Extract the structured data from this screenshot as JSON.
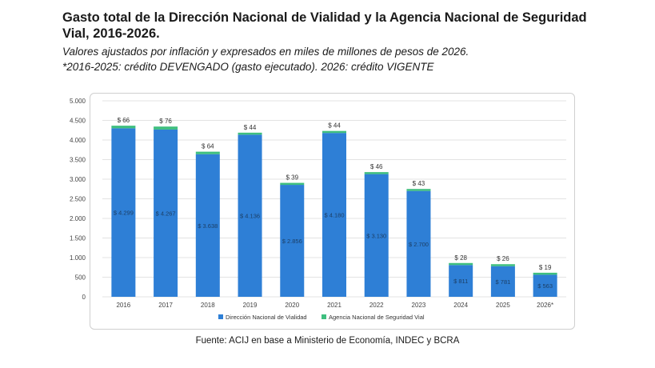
{
  "header": {
    "title_line1": "Gasto total de la Dirección Nacional de Vialidad y la Agencia Nacional de Seguridad",
    "title_line2": "Vial, 2016-2026.",
    "subtitle_line1": "Valores ajustados por inflación y expresados en miles de millones de pesos de 2026.",
    "subtitle_line2": "*2016-2025: crédito DEVENGADO (gasto ejecutado). 2026: crédito VIGENTE"
  },
  "source": "Fuente: ACIJ en base a Ministerio de Economía, INDEC y BCRA",
  "colors": {
    "dnv": "#2e7fd6",
    "ansv": "#3fbf7f",
    "grid": "#e3e3e3",
    "axis_text": "#444444"
  },
  "chart_data": {
    "type": "bar",
    "stacked": true,
    "title": "",
    "xlabel": "",
    "ylabel": "",
    "ylim": [
      0,
      5000
    ],
    "yticks": [
      0,
      500,
      1000,
      1500,
      2000,
      2500,
      3000,
      3500,
      4000,
      4500,
      5000
    ],
    "ytick_labels": [
      "0",
      "500",
      "1.000",
      "1.500",
      "2.000",
      "2.500",
      "3.000",
      "3.500",
      "4.000",
      "4.500",
      "5.000"
    ],
    "categories": [
      "2016",
      "2017",
      "2018",
      "2019",
      "2020",
      "2021",
      "2022",
      "2023",
      "2024",
      "2025",
      "2026*"
    ],
    "grid": true,
    "legend_position": "bottom",
    "series": [
      {
        "name": "Dirección Nacional de Vialidad",
        "values": [
          4299,
          4267,
          3638,
          4136,
          2856,
          4180,
          3130,
          2700,
          811,
          781,
          563
        ],
        "labels": [
          "$ 4.299",
          "$ 4.267",
          "$ 3.638",
          "$ 4.136",
          "$ 2.856",
          "$ 4.180",
          "$ 3.130",
          "$ 2.700",
          "$ 811",
          "$ 781",
          "$ 563"
        ]
      },
      {
        "name": "Agencia Nacional de Seguridad Vial",
        "values": [
          66,
          76,
          64,
          44,
          39,
          44,
          46,
          43,
          28,
          26,
          19
        ],
        "labels": [
          "$ 66",
          "$ 76",
          "$ 64",
          "$ 44",
          "$ 39",
          "$ 44",
          "$ 46",
          "$ 43",
          "$ 28",
          "$ 26",
          "$ 19"
        ]
      }
    ]
  }
}
